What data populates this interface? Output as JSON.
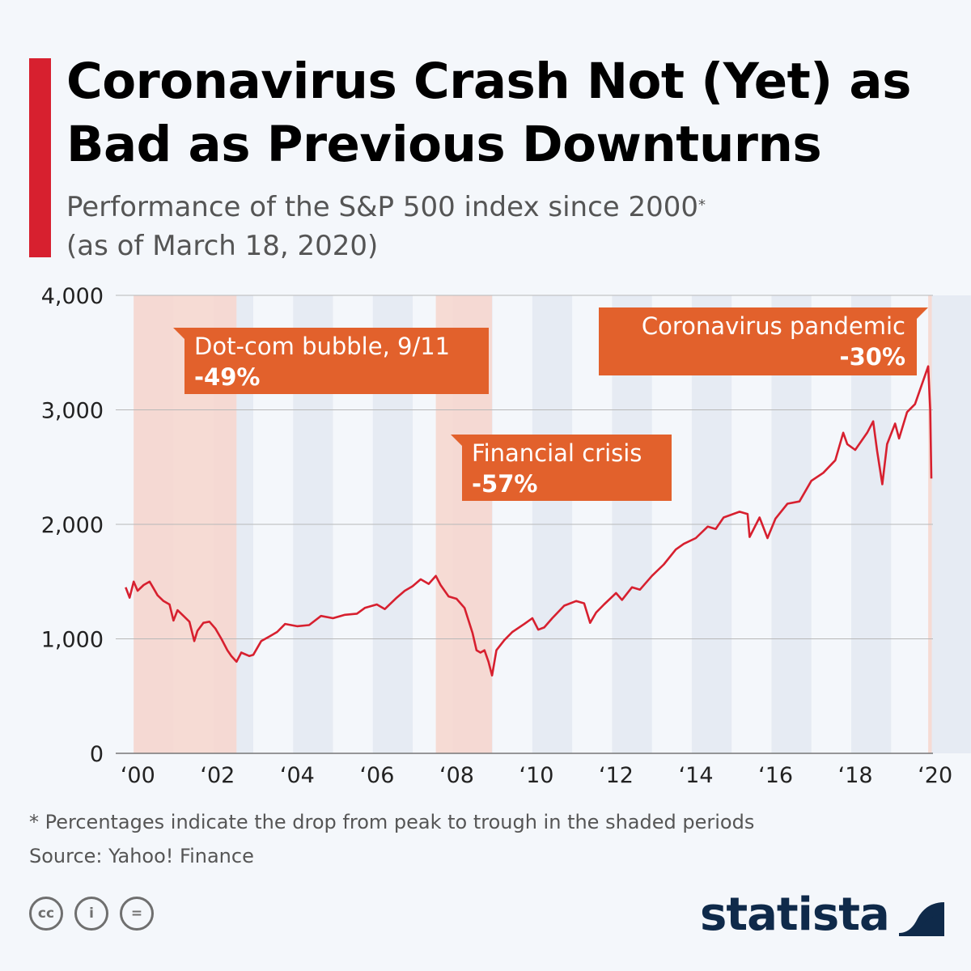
{
  "header": {
    "title_line1": "Coronavirus Crash Not (Yet) as",
    "title_line2": "Bad as Previous Downturns",
    "subtitle_line1": "Performance of the S&P 500 index since 2000",
    "subtitle_marker": "*",
    "subtitle_line2": "(as of March 18, 2020)"
  },
  "colors": {
    "accent": "#d7202f",
    "line": "#d7202f",
    "annotation_bg": "#e2612c",
    "shade": "#f6d7cf",
    "stripe": "#e6ebf3"
  },
  "chart_data": {
    "type": "line",
    "title": "Performance of the S&P 500 index since 2000",
    "xlabel": "",
    "ylabel": "",
    "xlim": [
      1999.75,
      2020.25
    ],
    "ylim": [
      0,
      4000
    ],
    "y_ticks": [
      0,
      1000,
      2000,
      3000,
      4000
    ],
    "y_tick_labels": [
      "0",
      "1,000",
      "2,000",
      "3,000",
      "4,000"
    ],
    "x_ticks": [
      2000,
      2002,
      2004,
      2006,
      2008,
      2010,
      2012,
      2014,
      2016,
      2018,
      2020
    ],
    "x_tick_labels": [
      "‘00",
      "‘02",
      "‘04",
      "‘06",
      "‘08",
      "‘10",
      "‘12",
      "‘14",
      "‘16",
      "‘18",
      "‘20"
    ],
    "shaded_periods": [
      {
        "start": 2000.2,
        "end": 2002.78
      },
      {
        "start": 2007.78,
        "end": 2009.19
      },
      {
        "start": 2020.13,
        "end": 2020.22
      }
    ],
    "annotations": [
      {
        "label": "Dot-com bubble, 9/11",
        "value": "-49%"
      },
      {
        "label": "Financial crisis",
        "value": "-57%"
      },
      {
        "label": "Coronavirus pandemic",
        "value": "-30%"
      }
    ],
    "series": [
      {
        "name": "S&P 500",
        "x": [
          2000.0,
          2000.1,
          2000.2,
          2000.3,
          2000.45,
          2000.6,
          2000.7,
          2000.8,
          2000.95,
          2001.1,
          2001.2,
          2001.3,
          2001.45,
          2001.6,
          2001.72,
          2001.8,
          2001.95,
          2002.1,
          2002.25,
          2002.4,
          2002.55,
          2002.65,
          2002.78,
          2002.9,
          2003.1,
          2003.2,
          2003.4,
          2003.6,
          2003.8,
          2004.0,
          2004.3,
          2004.6,
          2004.9,
          2005.2,
          2005.5,
          2005.8,
          2006.0,
          2006.3,
          2006.5,
          2006.8,
          2007.0,
          2007.2,
          2007.4,
          2007.6,
          2007.78,
          2007.9,
          2008.1,
          2008.3,
          2008.5,
          2008.7,
          2008.8,
          2008.9,
          2009.0,
          2009.1,
          2009.19,
          2009.3,
          2009.5,
          2009.7,
          2010.0,
          2010.2,
          2010.35,
          2010.5,
          2010.7,
          2011.0,
          2011.3,
          2011.5,
          2011.65,
          2011.8,
          2012.0,
          2012.3,
          2012.45,
          2012.7,
          2012.9,
          2013.2,
          2013.5,
          2013.8,
          2014.0,
          2014.3,
          2014.6,
          2014.8,
          2015.0,
          2015.4,
          2015.6,
          2015.65,
          2015.9,
          2016.1,
          2016.3,
          2016.6,
          2016.9,
          2017.2,
          2017.5,
          2017.8,
          2018.0,
          2018.1,
          2018.3,
          2018.6,
          2018.75,
          2018.85,
          2018.98,
          2019.1,
          2019.3,
          2019.4,
          2019.6,
          2019.8,
          2020.0,
          2020.13,
          2020.18,
          2020.21
        ],
        "values": [
          1450,
          1360,
          1500,
          1420,
          1470,
          1500,
          1440,
          1380,
          1330,
          1300,
          1160,
          1250,
          1200,
          1150,
          980,
          1070,
          1140,
          1150,
          1090,
          1000,
          900,
          850,
          800,
          880,
          850,
          860,
          980,
          1020,
          1060,
          1130,
          1110,
          1120,
          1200,
          1180,
          1210,
          1220,
          1270,
          1300,
          1260,
          1360,
          1420,
          1460,
          1520,
          1480,
          1550,
          1470,
          1370,
          1350,
          1270,
          1050,
          900,
          880,
          900,
          800,
          680,
          900,
          990,
          1060,
          1130,
          1180,
          1080,
          1100,
          1180,
          1290,
          1330,
          1310,
          1140,
          1230,
          1300,
          1400,
          1340,
          1450,
          1430,
          1550,
          1650,
          1780,
          1830,
          1880,
          1980,
          1960,
          2060,
          2110,
          2090,
          1890,
          2060,
          1880,
          2050,
          2180,
          2200,
          2380,
          2450,
          2560,
          2800,
          2700,
          2650,
          2800,
          2900,
          2640,
          2350,
          2700,
          2880,
          2750,
          2980,
          3050,
          3250,
          3380,
          3000,
          2400
        ]
      }
    ]
  },
  "footer": {
    "note": "* Percentages indicate the drop from peak to trough in the shaded periods",
    "source": "Source: Yahoo! Finance",
    "cc_label": "cc",
    "attrib_label": "i",
    "nd_label": "="
  },
  "brand": {
    "name": "statista"
  }
}
